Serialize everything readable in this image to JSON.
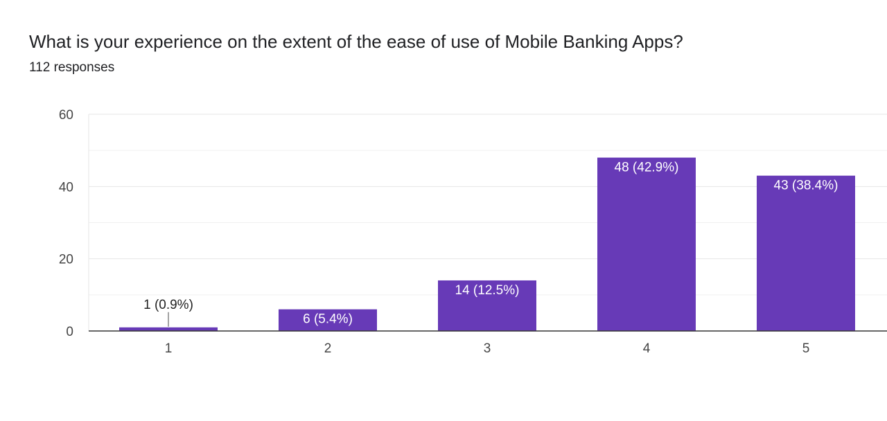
{
  "question": {
    "title": "What is your experience on the extent of the ease of use of Mobile Banking Apps?",
    "responses": "112 responses"
  },
  "colors": {
    "bar": "#673ab7",
    "grid": "#e6e6e6",
    "axis": "#333333",
    "label_inside": "#ffffff",
    "label_outside": "#222222"
  },
  "chart_data": {
    "type": "bar",
    "categories": [
      "1",
      "2",
      "3",
      "4",
      "5"
    ],
    "values": [
      1,
      6,
      14,
      48,
      43
    ],
    "labels": [
      "1 (0.9%)",
      "6 (5.4%)",
      "14 (12.5%)",
      "48 (42.9%)",
      "43 (38.4%)"
    ],
    "ylim": [
      0,
      60
    ],
    "yticks": [
      "0",
      "20",
      "40",
      "60"
    ],
    "ytick_values": [
      0,
      20,
      40,
      60
    ],
    "minor_gridlines": [
      10,
      30,
      50
    ],
    "grid": true,
    "xlabel": "",
    "ylabel": ""
  }
}
